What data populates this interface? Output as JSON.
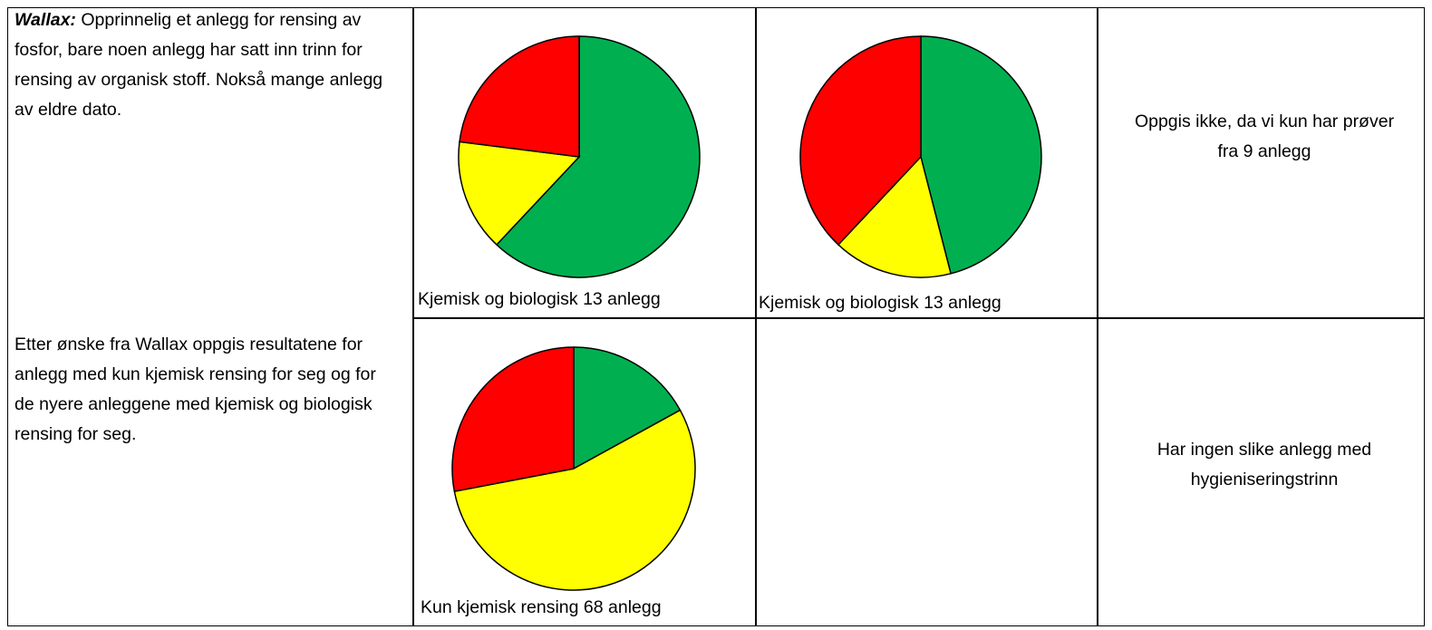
{
  "left": {
    "label": "Wallax:",
    "text": "Opprinnelig et anlegg for rensing av fosfor, bare noen anlegg har satt inn trinn for rensing av organisk stoff. Nokså mange anlegg av eldre dato.",
    "note": "Etter ønske fra Wallax oppgis resultatene for anlegg med kun kjemisk rensing for seg og for de nyere anleggene med kjemisk og biologisk rensing for seg."
  },
  "rows": [
    {
      "pies": [
        {
          "type": "pie",
          "caption": "Kjemisk og biologisk 13 anlegg",
          "values": [
            62,
            15,
            23
          ],
          "colors": [
            "#00b050",
            "#ffff00",
            "#ff0000"
          ]
        },
        {
          "type": "pie",
          "caption": "Kjemisk og biologisk 13 anlegg",
          "values": [
            46,
            16,
            38
          ],
          "colors": [
            "#00b050",
            "#ffff00",
            "#ff0000"
          ]
        }
      ],
      "note": "Oppgis ikke, da vi kun har prøver fra 9 anlegg"
    },
    {
      "pies": [
        {
          "type": "pie",
          "caption": "Kun kjemisk rensing 68 anlegg",
          "values": [
            17,
            55,
            28
          ],
          "colors": [
            "#00b050",
            "#ffff00",
            "#ff0000"
          ]
        }
      ],
      "note": "Har ingen slike anlegg med hygieniseringstrinn"
    }
  ]
}
